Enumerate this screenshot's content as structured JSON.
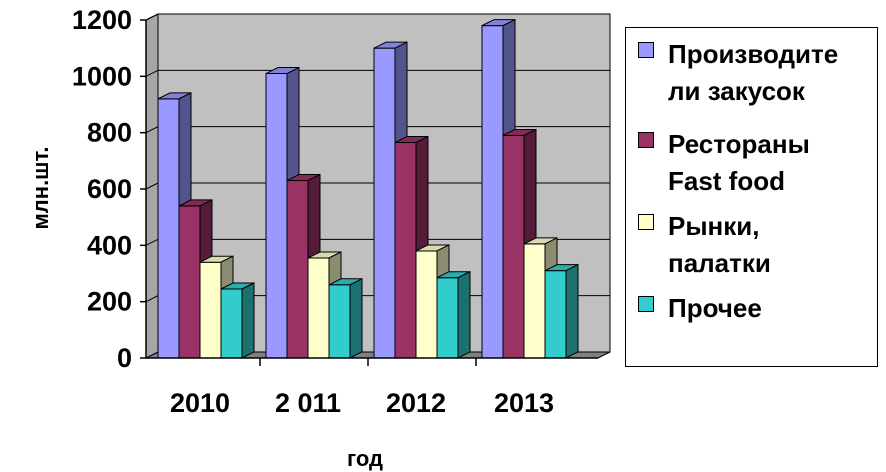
{
  "chart_data": {
    "type": "bar",
    "categories": [
      "2010",
      "2 011",
      "2012",
      "2013"
    ],
    "series": [
      {
        "name": "Производите\nли закусок",
        "values": [
          920,
          1010,
          1100,
          1180
        ],
        "color": "#9999FF"
      },
      {
        "name": "Рестораны\nFast food",
        "values": [
          540,
          630,
          765,
          790
        ],
        "color": "#993366"
      },
      {
        "name": "Рынки,\nпалатки",
        "values": [
          340,
          355,
          380,
          405
        ],
        "color": "#FFFFCC"
      },
      {
        "name": "Прочее",
        "values": [
          245,
          260,
          285,
          310
        ],
        "color": "#33CCCC"
      }
    ],
    "yticks": [
      "0",
      "200",
      "400",
      "600",
      "800",
      "1000",
      "1200"
    ],
    "ylim": [
      0,
      1200
    ],
    "xlabel": "год",
    "ylabel": "млн.шт.",
    "grid": true,
    "legend_position": "right",
    "wall_color": "#C0C0C0"
  }
}
